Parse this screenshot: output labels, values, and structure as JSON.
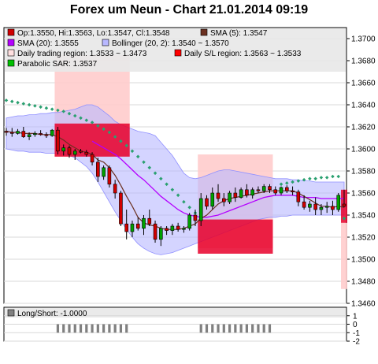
{
  "title": "Forex um Neun - Chart 21.01.2014 09:19",
  "colors": {
    "up": "#00a000",
    "down": "#d00000",
    "sma5": "#6b3020",
    "sma20": "#b400ff",
    "bollinger_fill": "#b8b8ff",
    "trading_fill": "#ffcccc",
    "sl_fill": "#e8002a",
    "sar": "#2aa070",
    "longshort": "#808080"
  },
  "chart_data": {
    "type": "candlestick",
    "ylim": [
      1.346,
      1.371
    ],
    "yticks": [
      "1.3460",
      "1.3480",
      "1.3500",
      "1.3520",
      "1.3540",
      "1.3560",
      "1.3580",
      "1.3600",
      "1.3620",
      "1.3640",
      "1.3660",
      "1.3680",
      "1.3700"
    ],
    "legend": [
      {
        "name": "Op:1.3550, Hi:1.3563, Lo:1.3547, Cl:1.3548",
        "swatch": "#d00000"
      },
      {
        "name": "SMA (5): 1.3547",
        "swatch": "#6b3020"
      },
      {
        "name": "SMA (20): 1.3555",
        "swatch": "#b400ff"
      },
      {
        "name": "Bollinger (20, 2): 1.3540 ~ 1.3570",
        "swatch": "#b8b8ff"
      },
      {
        "name": "Daily trading region: 1.3533 ~ 1.3473",
        "swatch": "#ffe0e0"
      },
      {
        "name": "Daily S/L region: 1.3563 ~ 1.3533",
        "swatch": "#ff0000"
      },
      {
        "name": "Parabolic SAR: 1.3537",
        "swatch": "#00c000"
      }
    ],
    "candles": [
      [
        1.3616,
        1.3619,
        1.3612,
        1.3615
      ],
      [
        1.3615,
        1.3619,
        1.3611,
        1.3614
      ],
      [
        1.3614,
        1.3618,
        1.3613,
        1.3616
      ],
      [
        1.3616,
        1.362,
        1.361,
        1.3611
      ],
      [
        1.3611,
        1.3615,
        1.3608,
        1.3613
      ],
      [
        1.3613,
        1.3616,
        1.3611,
        1.3614
      ],
      [
        1.3614,
        1.3617,
        1.3612,
        1.3613
      ],
      [
        1.3613,
        1.3615,
        1.361,
        1.3612
      ],
      [
        1.3612,
        1.3618,
        1.3611,
        1.3617
      ],
      [
        1.3617,
        1.362,
        1.3595,
        1.3598
      ],
      [
        1.3598,
        1.3604,
        1.3594,
        1.3601
      ],
      [
        1.3601,
        1.3603,
        1.3592,
        1.3595
      ],
      [
        1.3595,
        1.36,
        1.359,
        1.3598
      ],
      [
        1.3598,
        1.36,
        1.3596,
        1.3597
      ],
      [
        1.3597,
        1.3599,
        1.3593,
        1.3595
      ],
      [
        1.3595,
        1.3597,
        1.3585,
        1.3588
      ],
      [
        1.3588,
        1.3592,
        1.357,
        1.3575
      ],
      [
        1.3575,
        1.3585,
        1.3572,
        1.3583
      ],
      [
        1.3583,
        1.3585,
        1.3565,
        1.3568
      ],
      [
        1.3568,
        1.3572,
        1.3555,
        1.356
      ],
      [
        1.356,
        1.3562,
        1.353,
        1.3532
      ],
      [
        1.3532,
        1.3545,
        1.3518,
        1.3525
      ],
      [
        1.3525,
        1.3535,
        1.352,
        1.3532
      ],
      [
        1.3532,
        1.3538,
        1.3526,
        1.3528
      ],
      [
        1.3528,
        1.354,
        1.3522,
        1.3537
      ],
      [
        1.3537,
        1.3545,
        1.353,
        1.3532
      ],
      [
        1.3532,
        1.3535,
        1.3515,
        1.3518
      ],
      [
        1.3518,
        1.353,
        1.3512,
        1.3528
      ],
      [
        1.3528,
        1.353,
        1.3522,
        1.3526
      ],
      [
        1.3526,
        1.3532,
        1.3522,
        1.353
      ],
      [
        1.353,
        1.3533,
        1.3525,
        1.3527
      ],
      [
        1.3527,
        1.353,
        1.3524,
        1.3528
      ],
      [
        1.3528,
        1.3542,
        1.3526,
        1.354
      ],
      [
        1.354,
        1.3545,
        1.353,
        1.3535
      ],
      [
        1.3535,
        1.356,
        1.353,
        1.3555
      ],
      [
        1.3555,
        1.3558,
        1.3545,
        1.3548
      ],
      [
        1.3548,
        1.3565,
        1.3545,
        1.356
      ],
      [
        1.356,
        1.3568,
        1.3552,
        1.3555
      ],
      [
        1.3555,
        1.356,
        1.3548,
        1.3552
      ],
      [
        1.3552,
        1.3562,
        1.355,
        1.356
      ],
      [
        1.356,
        1.3565,
        1.3552,
        1.3556
      ],
      [
        1.3556,
        1.3565,
        1.3555,
        1.3563
      ],
      [
        1.3563,
        1.3568,
        1.3556,
        1.3558
      ],
      [
        1.3558,
        1.3565,
        1.3555,
        1.3563
      ],
      [
        1.3563,
        1.3566,
        1.356,
        1.3562
      ],
      [
        1.3562,
        1.3568,
        1.356,
        1.3566
      ],
      [
        1.3566,
        1.3568,
        1.356,
        1.3563
      ],
      [
        1.3563,
        1.3566,
        1.3558,
        1.356
      ],
      [
        1.356,
        1.3566,
        1.3558,
        1.3565
      ],
      [
        1.3565,
        1.3567,
        1.356,
        1.3562
      ],
      [
        1.3562,
        1.3566,
        1.3558,
        1.3561
      ],
      [
        1.3561,
        1.3563,
        1.3548,
        1.3552
      ],
      [
        1.3552,
        1.3558,
        1.3545,
        1.3547
      ],
      [
        1.3547,
        1.3553,
        1.3543,
        1.355
      ],
      [
        1.355,
        1.3556,
        1.354,
        1.3545
      ],
      [
        1.3545,
        1.355,
        1.354,
        1.3547
      ],
      [
        1.3547,
        1.3552,
        1.3542,
        1.3548
      ],
      [
        1.3548,
        1.3553,
        1.354,
        1.3545
      ],
      [
        1.3545,
        1.356,
        1.3543,
        1.3558
      ],
      [
        1.355,
        1.3563,
        1.3547,
        1.3548
      ]
    ],
    "sma5": [
      1.3616,
      1.3615,
      1.3615,
      1.3614,
      1.3614,
      1.3614,
      1.3613,
      1.3613,
      1.3613,
      1.3611,
      1.3608,
      1.3604,
      1.3601,
      1.3598,
      1.3597,
      1.3595,
      1.359,
      1.3588,
      1.3583,
      1.3576,
      1.3567,
      1.3557,
      1.3548,
      1.3538,
      1.3533,
      1.3531,
      1.353,
      1.3528,
      1.3527,
      1.3527,
      1.3527,
      1.3528,
      1.353,
      1.3532,
      1.3537,
      1.354,
      1.3545,
      1.355,
      1.3553,
      1.3555,
      1.3556,
      1.3557,
      1.3558,
      1.3559,
      1.356,
      1.3561,
      1.3562,
      1.3562,
      1.3562,
      1.3562,
      1.3562,
      1.356,
      1.3557,
      1.3554,
      1.3551,
      1.3548,
      1.3548,
      1.3547,
      1.3548,
      1.3547
    ],
    "sma20": [
      null,
      null,
      null,
      null,
      null,
      null,
      null,
      null,
      null,
      null,
      null,
      null,
      null,
      null,
      null,
      1.3607,
      1.3604,
      1.3601,
      1.3598,
      1.3595,
      1.3591,
      1.3586,
      1.3581,
      1.3576,
      1.3572,
      1.3567,
      1.3562,
      1.3557,
      1.3553,
      1.3549,
      1.3545,
      1.3542,
      1.354,
      1.3539,
      1.3538,
      1.3538,
      1.3539,
      1.354,
      1.3542,
      1.3544,
      1.3546,
      1.3548,
      1.355,
      1.3552,
      1.3554,
      1.3556,
      1.3557,
      1.3558,
      1.3558,
      1.3558,
      1.3558,
      1.3557,
      1.3556,
      1.3556,
      1.3556,
      1.3555,
      1.3555,
      1.3555,
      1.3555,
      1.3555
    ],
    "bb_upper": [
      1.3628,
      1.3629,
      1.363,
      1.363,
      1.3631,
      1.3631,
      1.3632,
      1.3632,
      1.3633,
      1.3633,
      1.3634,
      1.3635,
      1.3636,
      1.3638,
      1.364,
      1.364,
      1.3638,
      1.3634,
      1.363,
      1.3625,
      1.3622,
      1.362,
      1.3618,
      1.3616,
      1.3615,
      1.3614,
      1.3612,
      1.3606,
      1.36,
      1.3594,
      1.3586,
      1.3578,
      1.3574,
      1.3573,
      1.3574,
      1.3576,
      1.3578,
      1.358,
      1.3581,
      1.3581,
      1.358,
      1.3579,
      1.3578,
      1.3577,
      1.3576,
      1.3575,
      1.3574,
      1.3573,
      1.3573,
      1.3573,
      1.3572,
      1.3572,
      1.3571,
      1.3571,
      1.357,
      1.357,
      1.357,
      1.357,
      1.357,
      1.357
    ],
    "bb_lower": [
      1.36,
      1.3599,
      1.3598,
      1.3598,
      1.3597,
      1.3597,
      1.3597,
      1.3596,
      1.3596,
      1.3596,
      1.3595,
      1.3594,
      1.3592,
      1.3588,
      1.3584,
      1.3578,
      1.357,
      1.3561,
      1.3552,
      1.3543,
      1.3535,
      1.3527,
      1.352,
      1.3514,
      1.351,
      1.3507,
      1.3505,
      1.3504,
      1.3505,
      1.3506,
      1.3508,
      1.351,
      1.3512,
      1.3514,
      1.3516,
      1.3518,
      1.352,
      1.3522,
      1.3524,
      1.3526,
      1.3528,
      1.353,
      1.3532,
      1.3534,
      1.3536,
      1.3537,
      1.3538,
      1.3538,
      1.3539,
      1.3539,
      1.354,
      1.354,
      1.354,
      1.354,
      1.354,
      1.354,
      1.354,
      1.354,
      1.354,
      1.354
    ],
    "sar": [
      1.3644,
      1.3643,
      1.3642,
      1.3641,
      1.364,
      1.3639,
      1.3638,
      1.3637,
      1.3636,
      1.3635,
      1.3634,
      1.3632,
      1.363,
      1.3628,
      1.3626,
      1.3624,
      1.3621,
      1.3618,
      1.3615,
      1.3611,
      1.3607,
      1.3603,
      1.3598,
      1.3593,
      1.3588,
      1.3583,
      1.3578,
      1.3573,
      1.3568,
      1.3563,
      1.3558,
      1.3552,
      1.3547,
      1.3542,
      1.3537,
      null,
      null,
      null,
      null,
      null,
      null,
      null,
      null,
      null,
      null,
      null,
      null,
      null,
      1.3568,
      1.3569,
      1.357,
      1.3571,
      1.3572,
      1.3573,
      1.3573,
      1.3574,
      1.3574,
      1.3575,
      1.3575,
      1.3537
    ],
    "trading_regions": [
      {
        "start": 9,
        "end": 21,
        "hi": 1.3685,
        "lo": 1.3593
      },
      {
        "start": 34,
        "end": 46,
        "hi": 1.3595,
        "lo": 1.351
      },
      {
        "start": 59,
        "end": 59,
        "hi": 1.3533,
        "lo": 1.3473
      }
    ],
    "sl_regions": [
      {
        "start": 9,
        "end": 21,
        "hi": 1.3623,
        "lo": 1.3593
      },
      {
        "start": 34,
        "end": 46,
        "hi": 1.3536,
        "lo": 1.3505
      },
      {
        "start": 59,
        "end": 59,
        "hi": 1.3563,
        "lo": 1.3533
      }
    ],
    "longshort": {
      "label": "Long/Short: -1.0000",
      "ylim": [
        -2,
        2
      ],
      "yticks": [
        "1",
        "0",
        "-1",
        "-2"
      ],
      "value": -1,
      "short_ranges": [
        [
          9,
          21
        ],
        [
          34,
          46
        ]
      ]
    }
  }
}
